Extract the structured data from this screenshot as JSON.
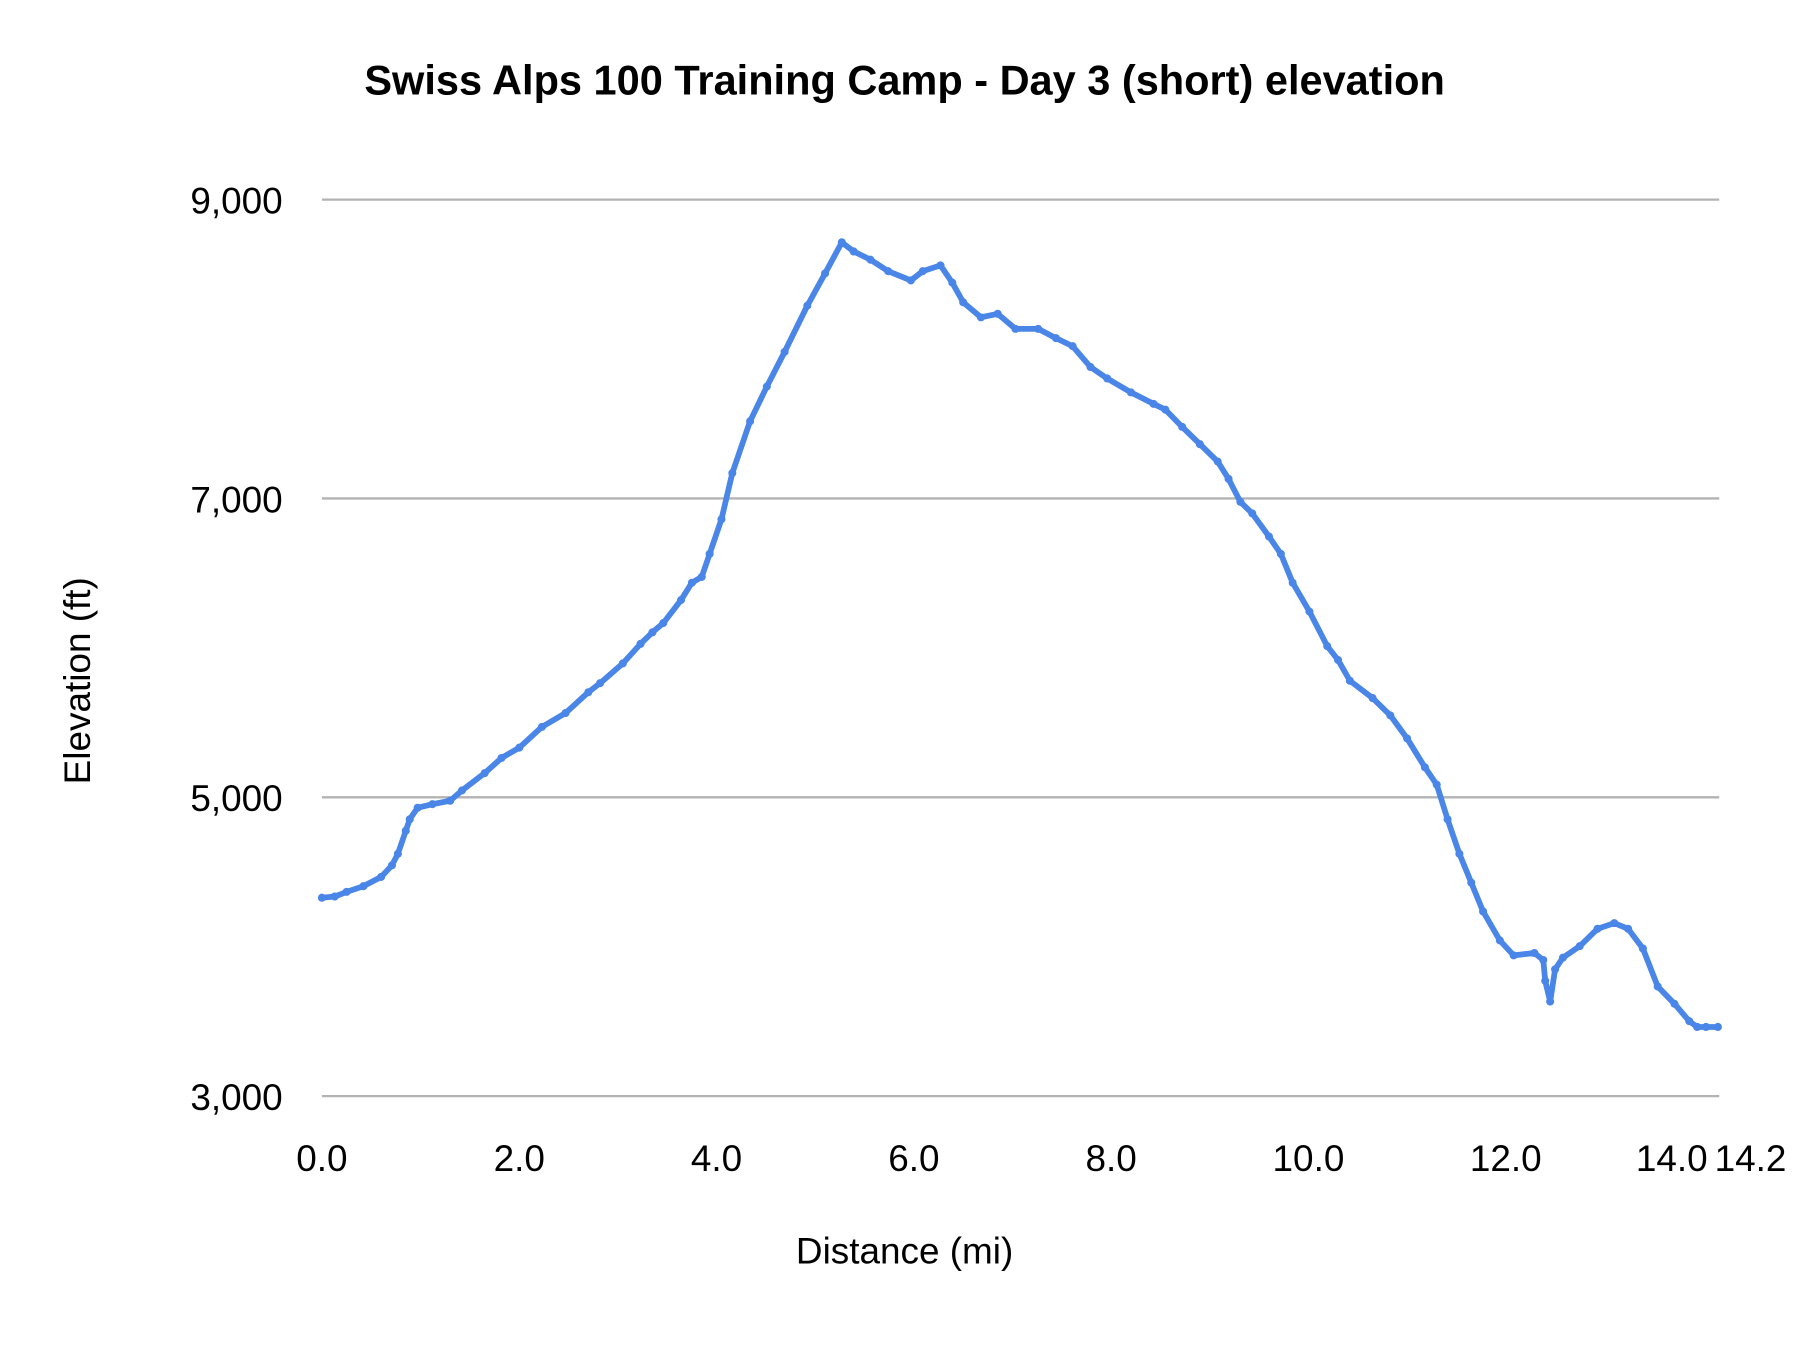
{
  "chart_data": {
    "type": "line",
    "title": "Swiss Alps 100 Training Camp - Day 3 (short) elevation",
    "xlabel": "Distance (mi)",
    "ylabel": "Elevation (ft)",
    "xlim": [
      0,
      14.2
    ],
    "ylim": [
      3000,
      9000
    ],
    "x_ticks": [
      "0.0",
      "2.0",
      "4.0",
      "6.0",
      "8.0",
      "10.0",
      "12.0",
      "14.0",
      "14.2"
    ],
    "x_tick_values": [
      0,
      2,
      4,
      6,
      8,
      10,
      12,
      14,
      14.2
    ],
    "y_ticks": [
      "3,000",
      "5,000",
      "7,000",
      "9,000"
    ],
    "y_tick_values": [
      3000,
      5000,
      7000,
      9000
    ],
    "grid": "horizontal",
    "legend": "none",
    "color": "#4a86e8",
    "series": [
      {
        "x": [
          0,
          0.13,
          0.25,
          0.42,
          0.6,
          0.71,
          0.77,
          0.85,
          0.89,
          0.97,
          1.12,
          1.3,
          1.42,
          1.65,
          1.82,
          2.0,
          2.23,
          2.47,
          2.7,
          2.82,
          3.05,
          3.23,
          3.35,
          3.46,
          3.64,
          3.75,
          3.85,
          3.93,
          4.05,
          4.16,
          4.34,
          4.51,
          4.69,
          4.92,
          5.1,
          5.27,
          5.39,
          5.56,
          5.74,
          5.97,
          6.09,
          6.27,
          6.39,
          6.5,
          6.68,
          6.85,
          7.03,
          7.26,
          7.44,
          7.61,
          7.79,
          7.96,
          8.2,
          8.43,
          8.55,
          8.72,
          8.9,
          9.08,
          9.19,
          9.31,
          9.43,
          9.6,
          9.72,
          9.84,
          10.01,
          10.19,
          10.3,
          10.42,
          10.65,
          10.83,
          11.0,
          11.18,
          11.3,
          11.41,
          11.53,
          11.65,
          11.77,
          11.94,
          12.08,
          12.29,
          12.38,
          12.4,
          12.45,
          12.5,
          12.58,
          12.75,
          12.93,
          13.1,
          13.24,
          13.39,
          13.54,
          13.71,
          13.86,
          13.94,
          14.03,
          14.15
        ],
        "y": [
          4328,
          4336,
          4367,
          4405,
          4467,
          4545,
          4622,
          4776,
          4853,
          4930,
          4954,
          4977,
          5046,
          5162,
          5263,
          5332,
          5471,
          5564,
          5703,
          5764,
          5896,
          6027,
          6104,
          6166,
          6320,
          6436,
          6475,
          6629,
          6861,
          7170,
          7517,
          7749,
          7981,
          8290,
          8506,
          8714,
          8653,
          8598,
          8521,
          8459,
          8521,
          8560,
          8444,
          8313,
          8212,
          8236,
          8135,
          8135,
          8073,
          8019,
          7880,
          7803,
          7710,
          7633,
          7594,
          7479,
          7363,
          7247,
          7131,
          6977,
          6900,
          6745,
          6629,
          6436,
          6243,
          6012,
          5919,
          5780,
          5664,
          5548,
          5394,
          5201,
          5085,
          4853,
          4622,
          4429,
          4236,
          4042,
          3942,
          3958,
          3911,
          3772,
          3633,
          3849,
          3927,
          4004,
          4120,
          4158,
          4120,
          3988,
          3734,
          3618,
          3502,
          3463,
          3463,
          3463
        ]
      }
    ]
  }
}
